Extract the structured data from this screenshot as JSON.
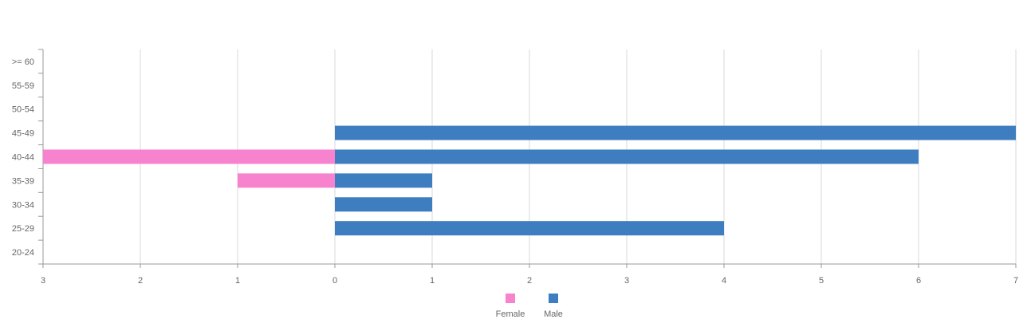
{
  "chart_data": {
    "type": "bar",
    "orientation": "horizontal",
    "title": "",
    "xlabel": "",
    "ylabel": "",
    "categories": [
      "20-24",
      "25-29",
      "30-34",
      "35-39",
      "40-44",
      "45-49",
      "50-54",
      "55-59",
      ">= 60"
    ],
    "x_tick_labels": [
      "3",
      "2",
      "1",
      "0",
      "1",
      "2",
      "3",
      "4",
      "5",
      "6",
      "7"
    ],
    "xlim": [
      -3,
      7
    ],
    "grid": true,
    "legend_position": "bottom",
    "series": [
      {
        "name": "Female",
        "color": "#F783CE",
        "values": [
          0,
          0,
          0,
          -1,
          -3,
          0,
          0,
          0,
          0
        ]
      },
      {
        "name": "Male",
        "color": "#3E7EC0",
        "values": [
          0,
          4,
          1,
          1,
          6,
          7,
          0,
          0,
          0
        ]
      }
    ]
  }
}
